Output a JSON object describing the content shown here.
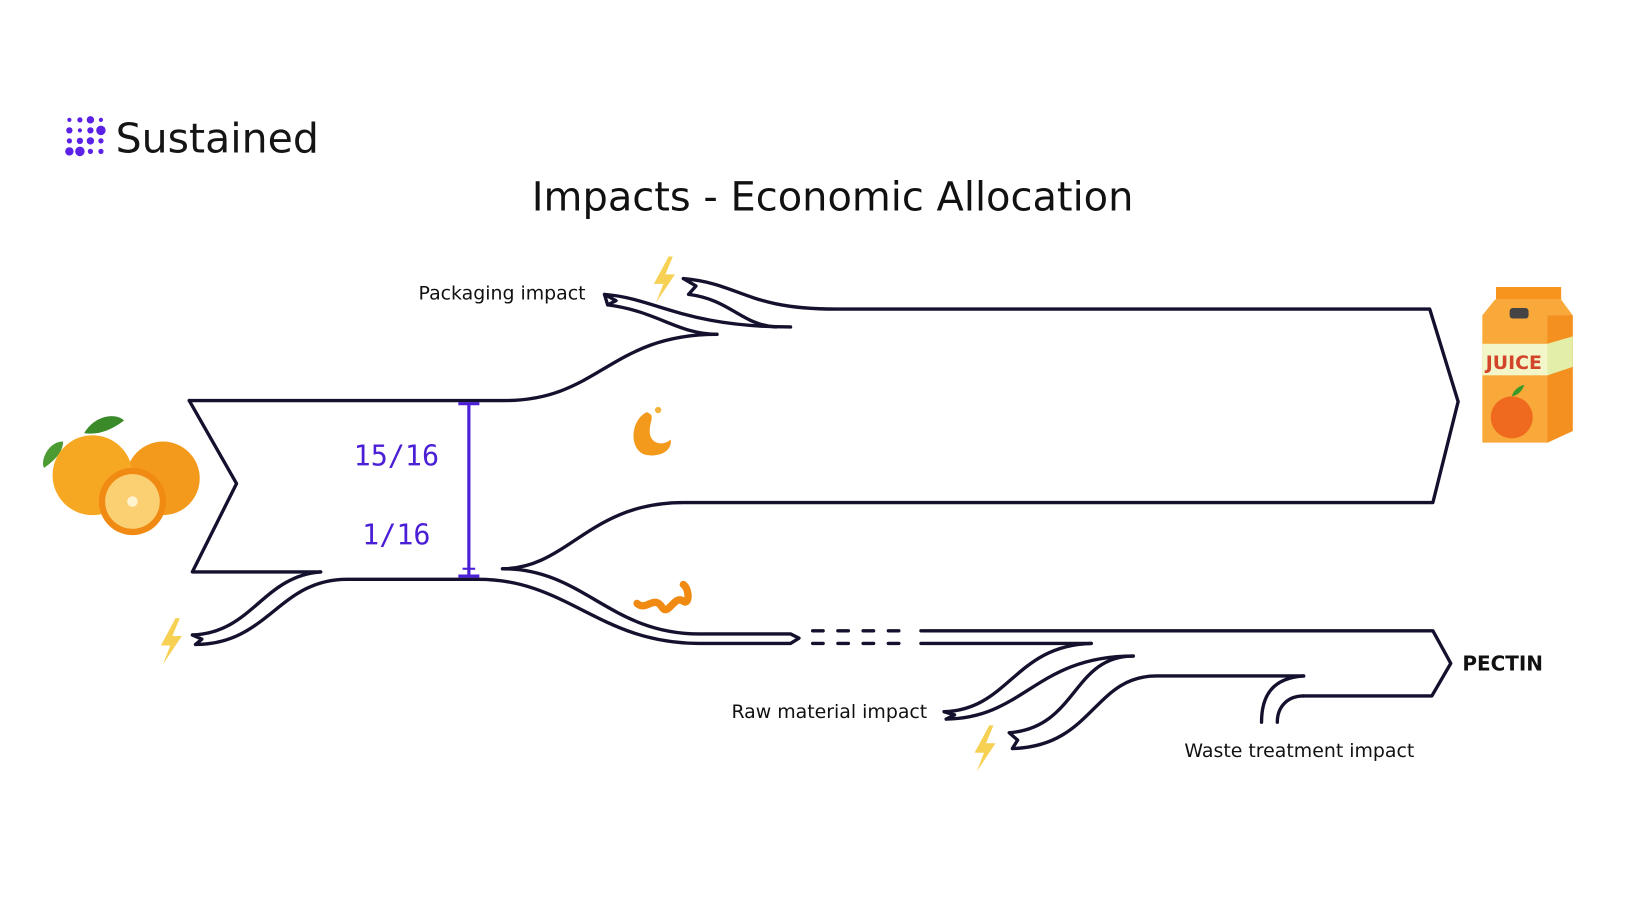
{
  "brand": {
    "name": "Sustained",
    "logo_icon": "dot-grid-logo",
    "accent_color": "#5b21e6"
  },
  "title": "Impacts - Economic Allocation",
  "labels": {
    "packaging": "Packaging impact",
    "raw_material": "Raw material impact",
    "waste_treatment": "Waste treatment impact",
    "pectin": "PECTIN",
    "juice_carton_text": "JUICE"
  },
  "allocation": {
    "juice_share": "15/16",
    "pectin_share": "1/16",
    "color": "#4b1fd6"
  },
  "icons": [
    "oranges-icon",
    "juice-carton-icon",
    "orange-juice-splash-icon",
    "orange-peel-icon",
    "lightning-icon"
  ],
  "colors": {
    "flow_stroke": "#14112e",
    "lightning": "#f7d154",
    "orange": "#f7941d"
  }
}
